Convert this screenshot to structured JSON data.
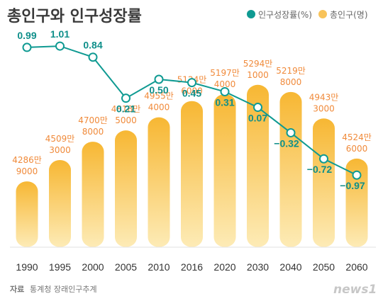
{
  "chart_data": {
    "type": "bar",
    "title": "총인구와 인구성장률",
    "categories": [
      "1990",
      "1995",
      "2000",
      "2005",
      "2010",
      "2016",
      "2020",
      "2030",
      "2040",
      "2050",
      "2060"
    ],
    "series": [
      {
        "name": "총인구(명)",
        "kind": "bar",
        "color": "#f8c35a",
        "values": [
          42869000,
          45093000,
          47008000,
          48185000,
          49554000,
          51246000,
          51974000,
          52941000,
          52198000,
          49433000,
          45246000
        ],
        "labels": [
          [
            "4286만",
            "9000"
          ],
          [
            "4509만",
            "3000"
          ],
          [
            "4700만",
            "8000"
          ],
          [
            "4818만",
            "5000"
          ],
          [
            "4955만",
            "4000"
          ],
          [
            "5124만",
            "6000"
          ],
          [
            "5197만",
            "4000"
          ],
          [
            "5294만",
            "1000"
          ],
          [
            "5219만",
            "8000"
          ],
          [
            "4943만",
            "3000"
          ],
          [
            "4524만",
            "6000"
          ]
        ]
      },
      {
        "name": "인구성장률(%)",
        "kind": "line",
        "color": "#0f9a92",
        "values": [
          0.99,
          1.01,
          0.84,
          0.21,
          0.5,
          0.45,
          0.31,
          0.07,
          -0.32,
          -0.72,
          -0.97
        ],
        "labels": [
          "0.99",
          "1.01",
          "0.84",
          "0.21",
          "0.50",
          "0.45",
          "0.31",
          "0.07",
          "−0.32",
          "−0.72",
          "−0.97"
        ]
      }
    ],
    "legend_position": "top-right",
    "grid": false
  },
  "footer": {
    "source_label": "자료",
    "source_text": "통계청 장래인구추계",
    "brand": "news1"
  }
}
